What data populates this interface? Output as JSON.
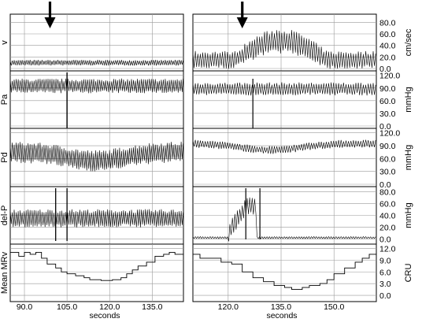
{
  "chart_data": {
    "type": "line",
    "title": "",
    "x_axis": {
      "label": "seconds",
      "left_ticks": [
        "90.0",
        "105.0",
        "120.0",
        "135.0"
      ],
      "left_tick_values": [
        90,
        105,
        120,
        135
      ],
      "left_range": [
        85,
        146
      ],
      "right_ticks": [
        "120.0",
        "135.0",
        "150.0"
      ],
      "right_tick_values": [
        120,
        135,
        150
      ],
      "right_range": [
        110,
        162
      ]
    },
    "events": {
      "arrow_left_s": 99,
      "arrow_right_s": 124
    },
    "panels": [
      {
        "id": "v",
        "name": "v",
        "unit": "cm/sec",
        "ticks": [
          "80.0",
          "60.0",
          "40.0",
          "20.0",
          "0.0"
        ],
        "tick_values": [
          80,
          60,
          40,
          20,
          0
        ],
        "ylim": [
          0,
          90
        ],
        "left_baseline": 10,
        "left_amp": 8,
        "right_baseline": 15,
        "right_amp": 25,
        "right_peak": 48,
        "right_peak_start_s": 125,
        "right_peak_end_s": 145
      },
      {
        "id": "pa",
        "name": "Pa",
        "unit": "mmHg",
        "ticks": [
          "120.0",
          "90.0",
          "60.0",
          "30.0",
          "0.0"
        ],
        "tick_values": [
          120,
          90,
          60,
          30,
          0
        ],
        "ylim": [
          0,
          125
        ],
        "left_baseline": 95,
        "left_amp": 28,
        "right_baseline": 88,
        "right_amp": 25,
        "left_drop_s": 105,
        "right_drop_s": 127
      },
      {
        "id": "pd",
        "name": "Pd",
        "unit": "mmHg",
        "ticks": [
          "120.0",
          "90.0",
          "60.0",
          "30.0",
          "0.0"
        ],
        "tick_values": [
          120,
          90,
          60,
          30,
          0
        ],
        "ylim": [
          0,
          125
        ],
        "left_baseline": 75,
        "left_amp": 40,
        "left_dip_to": 55,
        "left_dip_center_s": 115,
        "right_baseline": 95,
        "right_amp": 15,
        "right_dip_to": 80,
        "right_dip_center_s": 132
      },
      {
        "id": "delp",
        "name": "del-P",
        "unit": "mmHg",
        "ticks": [
          "80.0",
          "60.0",
          "40.0",
          "20.0",
          "0.0"
        ],
        "tick_values": [
          80,
          60,
          40,
          20,
          0
        ],
        "ylim": [
          -5,
          85
        ],
        "left_baseline": 35,
        "left_amp": 25,
        "right_baseline": 2,
        "right_amp": 3,
        "right_spike_start_s": 120,
        "right_spike_end_s": 128
      },
      {
        "id": "mmrv",
        "name": "Mean MRv",
        "unit": "CRU",
        "ticks": [
          "12.0",
          "9.0",
          "6.0",
          "3.0",
          "0.0"
        ],
        "tick_values": [
          12,
          9,
          6,
          3,
          0
        ],
        "ylim": [
          -1,
          12.5
        ],
        "left_steps": [
          [
            85,
            11
          ],
          [
            88,
            10
          ],
          [
            90,
            11
          ],
          [
            92,
            10.5
          ],
          [
            94,
            11
          ],
          [
            96,
            9.5
          ],
          [
            98,
            8
          ],
          [
            101,
            7
          ],
          [
            103,
            6
          ],
          [
            105,
            5.5
          ],
          [
            108,
            5
          ],
          [
            111,
            4.5
          ],
          [
            113,
            4
          ],
          [
            117,
            3.8
          ],
          [
            121,
            4
          ],
          [
            124,
            4.5
          ],
          [
            126,
            5.5
          ],
          [
            128,
            6.5
          ],
          [
            130,
            7.5
          ],
          [
            133,
            8.5
          ],
          [
            136,
            10
          ],
          [
            139,
            10.5
          ],
          [
            141,
            11
          ],
          [
            143,
            10.5
          ],
          [
            146,
            10.5
          ]
        ],
        "right_steps": [
          [
            110,
            10.5
          ],
          [
            112,
            9.5
          ],
          [
            115,
            9.5
          ],
          [
            118,
            8.5
          ],
          [
            121,
            8
          ],
          [
            124,
            6
          ],
          [
            127,
            4.5
          ],
          [
            130,
            3.5
          ],
          [
            133,
            2.5
          ],
          [
            136,
            2
          ],
          [
            138,
            1.5
          ],
          [
            141,
            2
          ],
          [
            143,
            2.5
          ],
          [
            146,
            3
          ],
          [
            148,
            4
          ],
          [
            150,
            5.5
          ],
          [
            153,
            7
          ],
          [
            156,
            8.5
          ],
          [
            158,
            9.5
          ],
          [
            160,
            10.5
          ],
          [
            162,
            10.5
          ]
        ]
      }
    ],
    "grid": true,
    "legend": "none"
  }
}
